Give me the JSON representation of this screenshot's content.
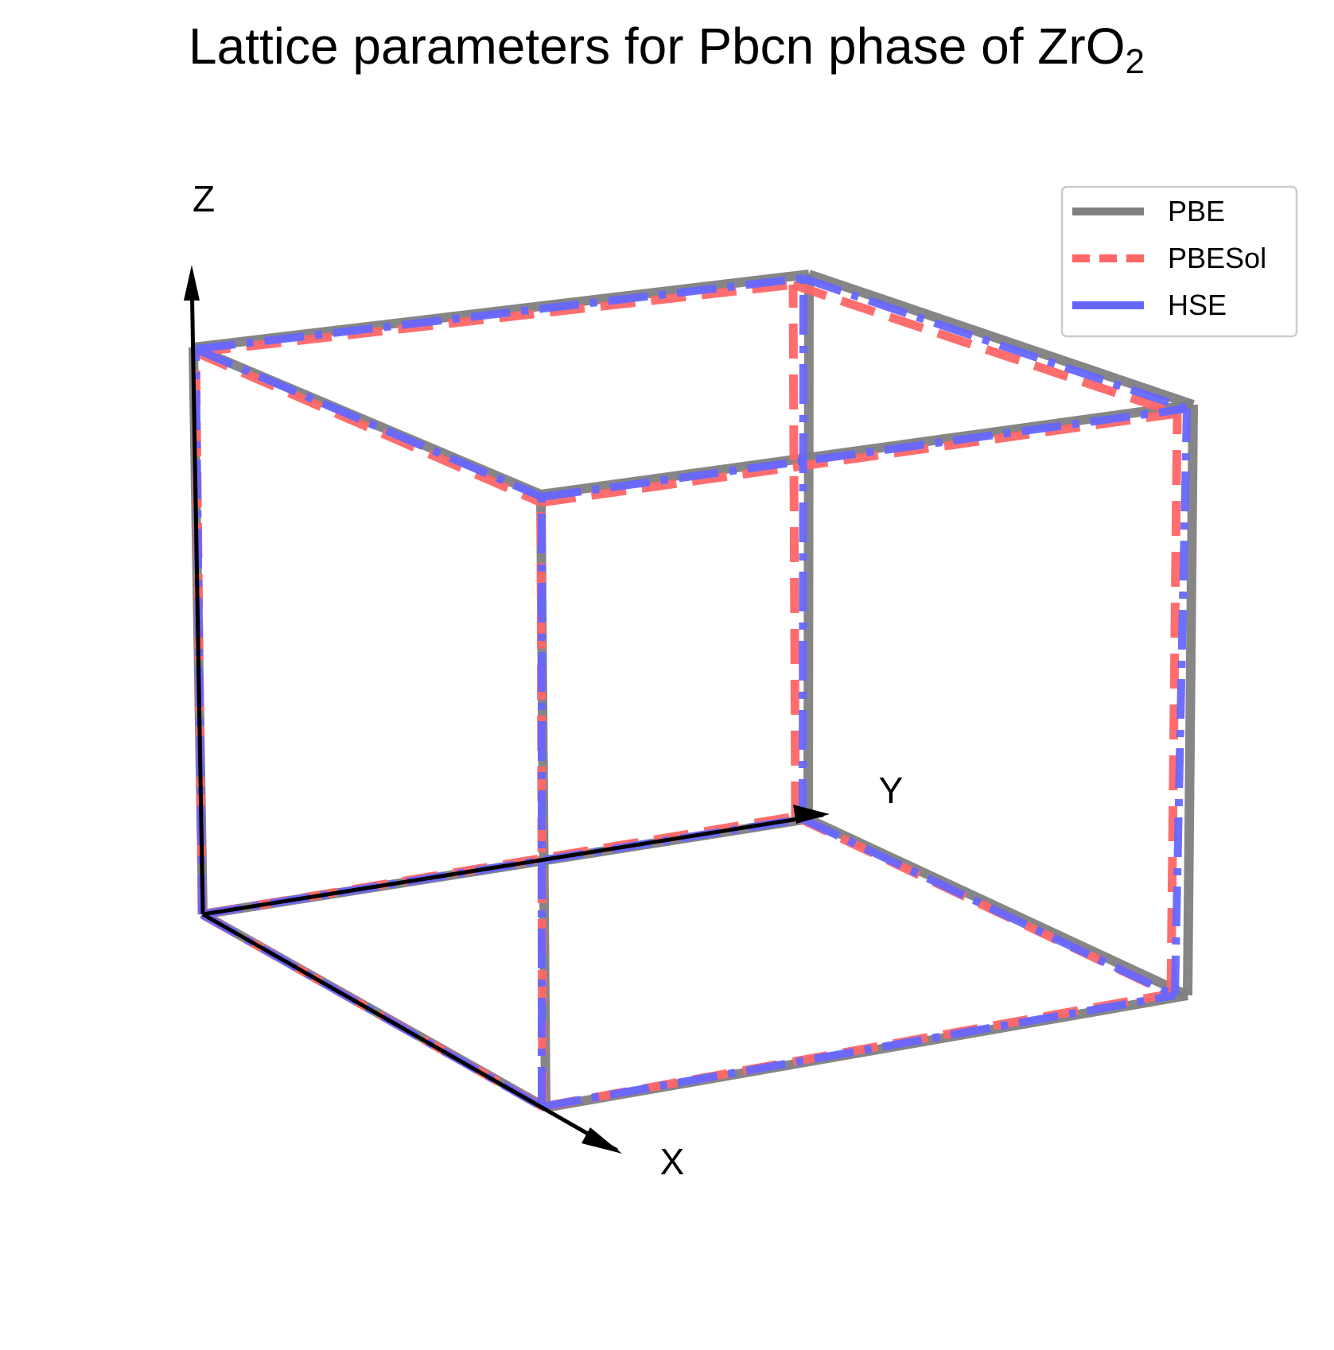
{
  "title": {
    "main": "Lattice parameters for Pbcn phase of ZrO",
    "subscript": "2"
  },
  "axes": {
    "x_label": "X",
    "y_label": "Y",
    "z_label": "Z"
  },
  "chart_data": {
    "type": "3d-wireframe-box",
    "series": [
      {
        "name": "PBE",
        "color": "#808080",
        "line_style": "solid"
      },
      {
        "name": "PBESol",
        "color": "#ff6666",
        "line_style": "dashed"
      },
      {
        "name": "HSE",
        "color": "#6666ff",
        "line_style": "dashdot"
      }
    ],
    "legend_placement": "top-right"
  }
}
